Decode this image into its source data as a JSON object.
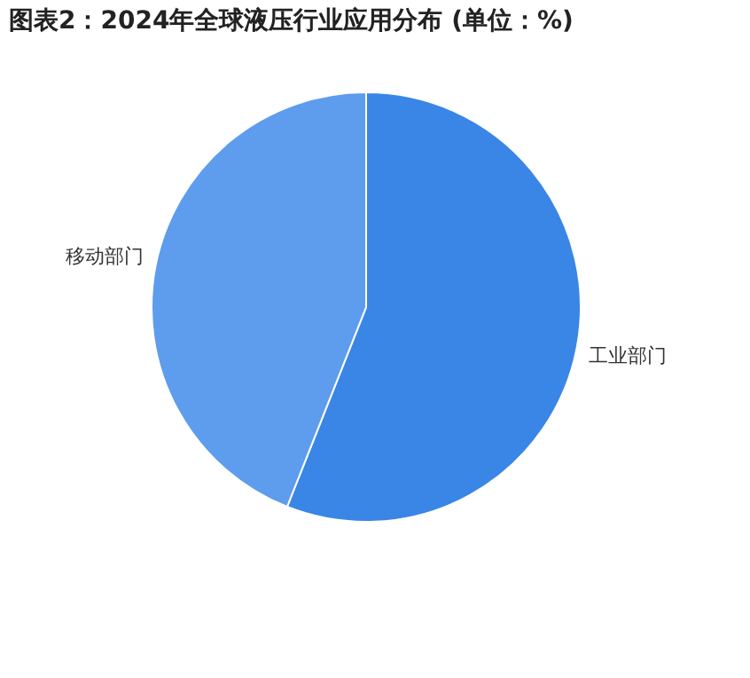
{
  "chart_data": {
    "type": "pie",
    "title": "图表2：2024年全球液压行业应用分布 (单位：%)",
    "categories": [
      "工业部门",
      "移动部门"
    ],
    "values": [
      56,
      44
    ],
    "colors": [
      "#3a86e6",
      "#5e9ced"
    ],
    "legend": false
  }
}
